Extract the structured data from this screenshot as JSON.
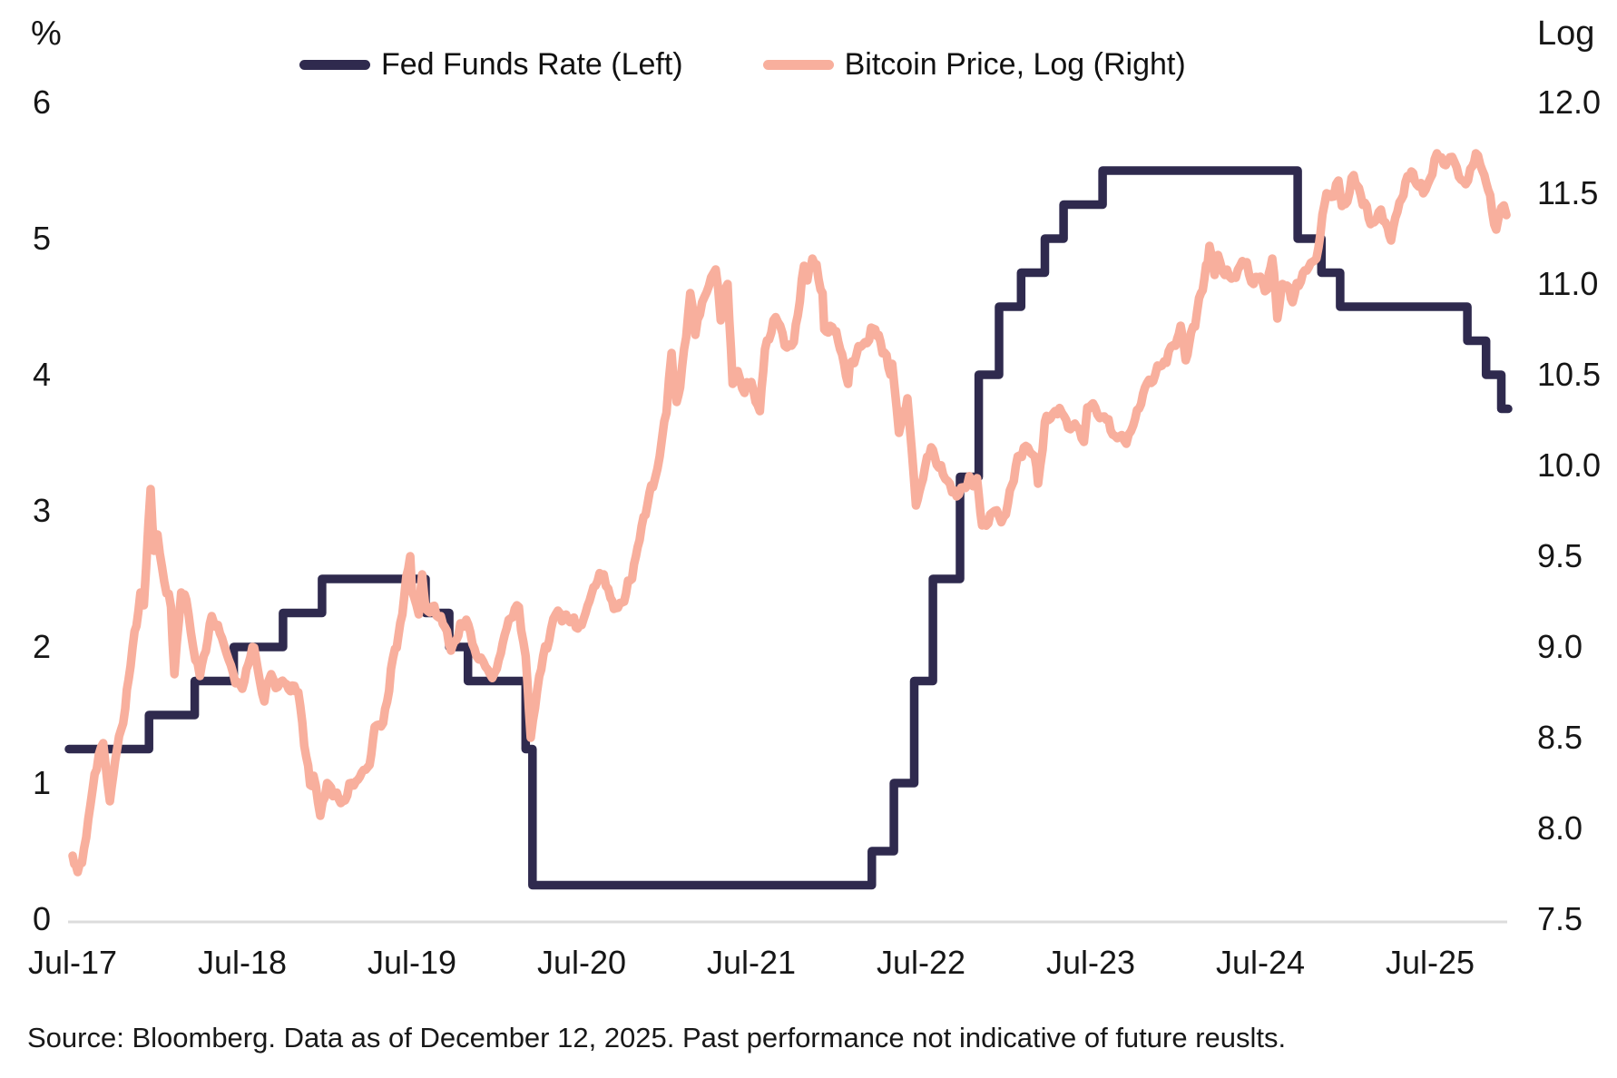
{
  "header": {
    "left_axis_unit": "%",
    "right_axis_unit": "Log"
  },
  "legend": [
    {
      "label": "Fed Funds Rate (Left)",
      "color": "#2F2A4E"
    },
    {
      "label": "Bitcoin Price, Log (Right)",
      "color": "#F8AF9D"
    }
  ],
  "source_note": "Source: Bloomberg. Data as of December 12, 2025. Past performance not indicative of future reuslts.",
  "colors": {
    "fed_line": "#2F2A4E",
    "bitcoin_line": "#F8AF9D",
    "axis_line": "#DCDCDC",
    "text": "#161616"
  },
  "chart_data": {
    "type": "line",
    "title": "",
    "xlabel": "",
    "x_axis": {
      "tick_labels": [
        "Jul-17",
        "Jul-18",
        "Jul-19",
        "Jul-20",
        "Jul-21",
        "Jul-22",
        "Jul-23",
        "Jul-24",
        "Jul-25"
      ],
      "start": "Jul-2017",
      "end": "Dec-12-2025",
      "units": "years since Jul-2017"
    },
    "left_axis": {
      "label": "%",
      "ticks": [
        0,
        1,
        2,
        3,
        4,
        5,
        6
      ],
      "range": [
        0,
        6
      ]
    },
    "right_axis": {
      "label": "Log",
      "ticks": [
        7.5,
        8.0,
        8.5,
        9.0,
        9.5,
        10.0,
        10.5,
        11.0,
        11.5,
        12.0
      ],
      "range": [
        7.5,
        12.0
      ]
    },
    "grid": "off",
    "legend_position": "top-center",
    "series": [
      {
        "name": "Fed Funds Rate (Left)",
        "axis": "left",
        "style": "step",
        "color": "#2F2A4E",
        "points": [
          [
            0.0,
            1.25
          ],
          [
            0.45,
            1.5
          ],
          [
            0.72,
            1.75
          ],
          [
            0.95,
            2.0
          ],
          [
            1.24,
            2.25
          ],
          [
            1.47,
            2.5
          ],
          [
            2.08,
            2.25
          ],
          [
            2.22,
            2.0
          ],
          [
            2.33,
            1.75
          ],
          [
            2.67,
            1.25
          ],
          [
            2.71,
            0.25
          ],
          [
            4.71,
            0.5
          ],
          [
            4.84,
            1.0
          ],
          [
            4.96,
            1.75
          ],
          [
            5.07,
            2.5
          ],
          [
            5.23,
            3.25
          ],
          [
            5.34,
            4.0
          ],
          [
            5.46,
            4.5
          ],
          [
            5.59,
            4.75
          ],
          [
            5.73,
            5.0
          ],
          [
            5.84,
            5.25
          ],
          [
            6.07,
            5.5
          ],
          [
            7.22,
            5.0
          ],
          [
            7.36,
            4.75
          ],
          [
            7.47,
            4.5
          ],
          [
            8.22,
            4.25
          ],
          [
            8.33,
            4.0
          ],
          [
            8.42,
            3.75
          ],
          [
            8.46,
            3.75
          ]
        ]
      },
      {
        "name": "Bitcoin Price, Log (Right)",
        "axis": "right",
        "style": "line",
        "color": "#F8AF9D",
        "points": [
          [
            0.0,
            7.85
          ],
          [
            0.03,
            7.76
          ],
          [
            0.08,
            7.95
          ],
          [
            0.13,
            8.3
          ],
          [
            0.18,
            8.47
          ],
          [
            0.22,
            8.15
          ],
          [
            0.25,
            8.37
          ],
          [
            0.31,
            8.66
          ],
          [
            0.33,
            8.82
          ],
          [
            0.4,
            9.3
          ],
          [
            0.42,
            9.23
          ],
          [
            0.46,
            9.87
          ],
          [
            0.48,
            9.53
          ],
          [
            0.5,
            9.62
          ],
          [
            0.54,
            9.36
          ],
          [
            0.58,
            9.22
          ],
          [
            0.6,
            8.85
          ],
          [
            0.64,
            9.3
          ],
          [
            0.67,
            9.26
          ],
          [
            0.71,
            9.0
          ],
          [
            0.75,
            8.84
          ],
          [
            0.82,
            9.17
          ],
          [
            0.88,
            9.05
          ],
          [
            0.92,
            8.93
          ],
          [
            0.96,
            8.8
          ],
          [
            1.0,
            8.77
          ],
          [
            1.06,
            9.0
          ],
          [
            1.08,
            8.94
          ],
          [
            1.13,
            8.7
          ],
          [
            1.17,
            8.85
          ],
          [
            1.21,
            8.78
          ],
          [
            1.25,
            8.8
          ],
          [
            1.33,
            8.75
          ],
          [
            1.4,
            8.24
          ],
          [
            1.42,
            8.29
          ],
          [
            1.46,
            8.07
          ],
          [
            1.5,
            8.25
          ],
          [
            1.58,
            8.14
          ],
          [
            1.67,
            8.26
          ],
          [
            1.75,
            8.35
          ],
          [
            1.78,
            8.56
          ],
          [
            1.83,
            8.58
          ],
          [
            1.9,
            8.99
          ],
          [
            1.92,
            9.06
          ],
          [
            1.99,
            9.5
          ],
          [
            2.0,
            9.31
          ],
          [
            2.04,
            9.18
          ],
          [
            2.06,
            9.4
          ],
          [
            2.08,
            9.21
          ],
          [
            2.17,
            9.17
          ],
          [
            2.23,
            8.98
          ],
          [
            2.25,
            9.03
          ],
          [
            2.32,
            9.15
          ],
          [
            2.38,
            8.95
          ],
          [
            2.42,
            8.92
          ],
          [
            2.46,
            8.85
          ],
          [
            2.5,
            8.88
          ],
          [
            2.57,
            9.15
          ],
          [
            2.63,
            9.22
          ],
          [
            2.67,
            8.95
          ],
          [
            2.7,
            8.5
          ],
          [
            2.75,
            8.84
          ],
          [
            2.82,
            9.1
          ],
          [
            2.86,
            9.2
          ],
          [
            2.92,
            9.15
          ],
          [
            3.0,
            9.12
          ],
          [
            3.07,
            9.33
          ],
          [
            3.13,
            9.4
          ],
          [
            3.17,
            9.27
          ],
          [
            3.19,
            9.21
          ],
          [
            3.25,
            9.25
          ],
          [
            3.32,
            9.5
          ],
          [
            3.33,
            9.55
          ],
          [
            3.4,
            9.85
          ],
          [
            3.42,
            9.88
          ],
          [
            3.46,
            10.05
          ],
          [
            3.5,
            10.29
          ],
          [
            3.53,
            10.62
          ],
          [
            3.56,
            10.35
          ],
          [
            3.58,
            10.43
          ],
          [
            3.64,
            10.95
          ],
          [
            3.67,
            10.72
          ],
          [
            3.71,
            10.9
          ],
          [
            3.75,
            10.99
          ],
          [
            3.79,
            11.08
          ],
          [
            3.82,
            10.8
          ],
          [
            3.83,
            10.96
          ],
          [
            3.86,
            11.0
          ],
          [
            3.89,
            10.45
          ],
          [
            3.92,
            10.52
          ],
          [
            3.96,
            10.4
          ],
          [
            4.0,
            10.46
          ],
          [
            4.05,
            10.3
          ],
          [
            4.08,
            10.64
          ],
          [
            4.13,
            10.8
          ],
          [
            4.17,
            10.77
          ],
          [
            4.21,
            10.65
          ],
          [
            4.25,
            10.68
          ],
          [
            4.31,
            11.1
          ],
          [
            4.33,
            11.02
          ],
          [
            4.36,
            11.14
          ],
          [
            4.42,
            10.95
          ],
          [
            4.43,
            10.75
          ],
          [
            4.5,
            10.74
          ],
          [
            4.57,
            10.45
          ],
          [
            4.58,
            10.56
          ],
          [
            4.67,
            10.68
          ],
          [
            4.73,
            10.75
          ],
          [
            4.75,
            10.72
          ],
          [
            4.82,
            10.5
          ],
          [
            4.83,
            10.56
          ],
          [
            4.87,
            10.18
          ],
          [
            4.9,
            10.3
          ],
          [
            4.92,
            10.37
          ],
          [
            4.97,
            9.78
          ],
          [
            5.0,
            9.89
          ],
          [
            5.06,
            10.1
          ],
          [
            5.08,
            10.05
          ],
          [
            5.13,
            9.95
          ],
          [
            5.17,
            9.9
          ],
          [
            5.21,
            9.83
          ],
          [
            5.25,
            9.88
          ],
          [
            5.33,
            9.93
          ],
          [
            5.36,
            9.67
          ],
          [
            5.42,
            9.74
          ],
          [
            5.46,
            9.72
          ],
          [
            5.5,
            9.73
          ],
          [
            5.57,
            10.05
          ],
          [
            5.63,
            10.1
          ],
          [
            5.67,
            10.05
          ],
          [
            5.69,
            9.9
          ],
          [
            5.73,
            10.24
          ],
          [
            5.75,
            10.25
          ],
          [
            5.79,
            10.3
          ],
          [
            5.83,
            10.29
          ],
          [
            5.88,
            10.2
          ],
          [
            5.92,
            10.21
          ],
          [
            5.96,
            10.13
          ],
          [
            5.98,
            10.32
          ],
          [
            6.0,
            10.33
          ],
          [
            6.04,
            10.28
          ],
          [
            6.08,
            10.27
          ],
          [
            6.13,
            10.17
          ],
          [
            6.17,
            10.16
          ],
          [
            6.21,
            10.12
          ],
          [
            6.25,
            10.22
          ],
          [
            6.32,
            10.43
          ],
          [
            6.38,
            10.5
          ],
          [
            6.42,
            10.55
          ],
          [
            6.46,
            10.63
          ],
          [
            6.5,
            10.66
          ],
          [
            6.53,
            10.77
          ],
          [
            6.56,
            10.58
          ],
          [
            6.58,
            10.67
          ],
          [
            6.65,
            10.95
          ],
          [
            6.67,
            11.03
          ],
          [
            6.7,
            11.21
          ],
          [
            6.73,
            11.05
          ],
          [
            6.75,
            11.16
          ],
          [
            6.79,
            11.05
          ],
          [
            6.83,
            11.03
          ],
          [
            6.88,
            11.1
          ],
          [
            6.92,
            11.12
          ],
          [
            6.96,
            11.0
          ],
          [
            7.0,
            11.04
          ],
          [
            7.04,
            10.97
          ],
          [
            7.07,
            11.14
          ],
          [
            7.08,
            11.06
          ],
          [
            7.1,
            10.81
          ],
          [
            7.13,
            11.0
          ],
          [
            7.17,
            10.98
          ],
          [
            7.19,
            10.9
          ],
          [
            7.25,
            11.06
          ],
          [
            7.32,
            11.13
          ],
          [
            7.33,
            11.14
          ],
          [
            7.39,
            11.5
          ],
          [
            7.42,
            11.48
          ],
          [
            7.46,
            11.57
          ],
          [
            7.48,
            11.43
          ],
          [
            7.5,
            11.44
          ],
          [
            7.55,
            11.6
          ],
          [
            7.58,
            11.53
          ],
          [
            7.65,
            11.33
          ],
          [
            7.67,
            11.34
          ],
          [
            7.71,
            11.41
          ],
          [
            7.75,
            11.31
          ],
          [
            7.77,
            11.24
          ],
          [
            7.82,
            11.45
          ],
          [
            7.89,
            11.62
          ],
          [
            7.92,
            11.55
          ],
          [
            7.96,
            11.5
          ],
          [
            8.0,
            11.58
          ],
          [
            8.04,
            11.72
          ],
          [
            8.08,
            11.66
          ],
          [
            8.13,
            11.7
          ],
          [
            8.17,
            11.59
          ],
          [
            8.21,
            11.55
          ],
          [
            8.25,
            11.65
          ],
          [
            8.27,
            11.72
          ],
          [
            8.32,
            11.6
          ],
          [
            8.33,
            11.56
          ],
          [
            8.39,
            11.3
          ],
          [
            8.42,
            11.42
          ],
          [
            8.45,
            11.38
          ]
        ]
      }
    ]
  }
}
